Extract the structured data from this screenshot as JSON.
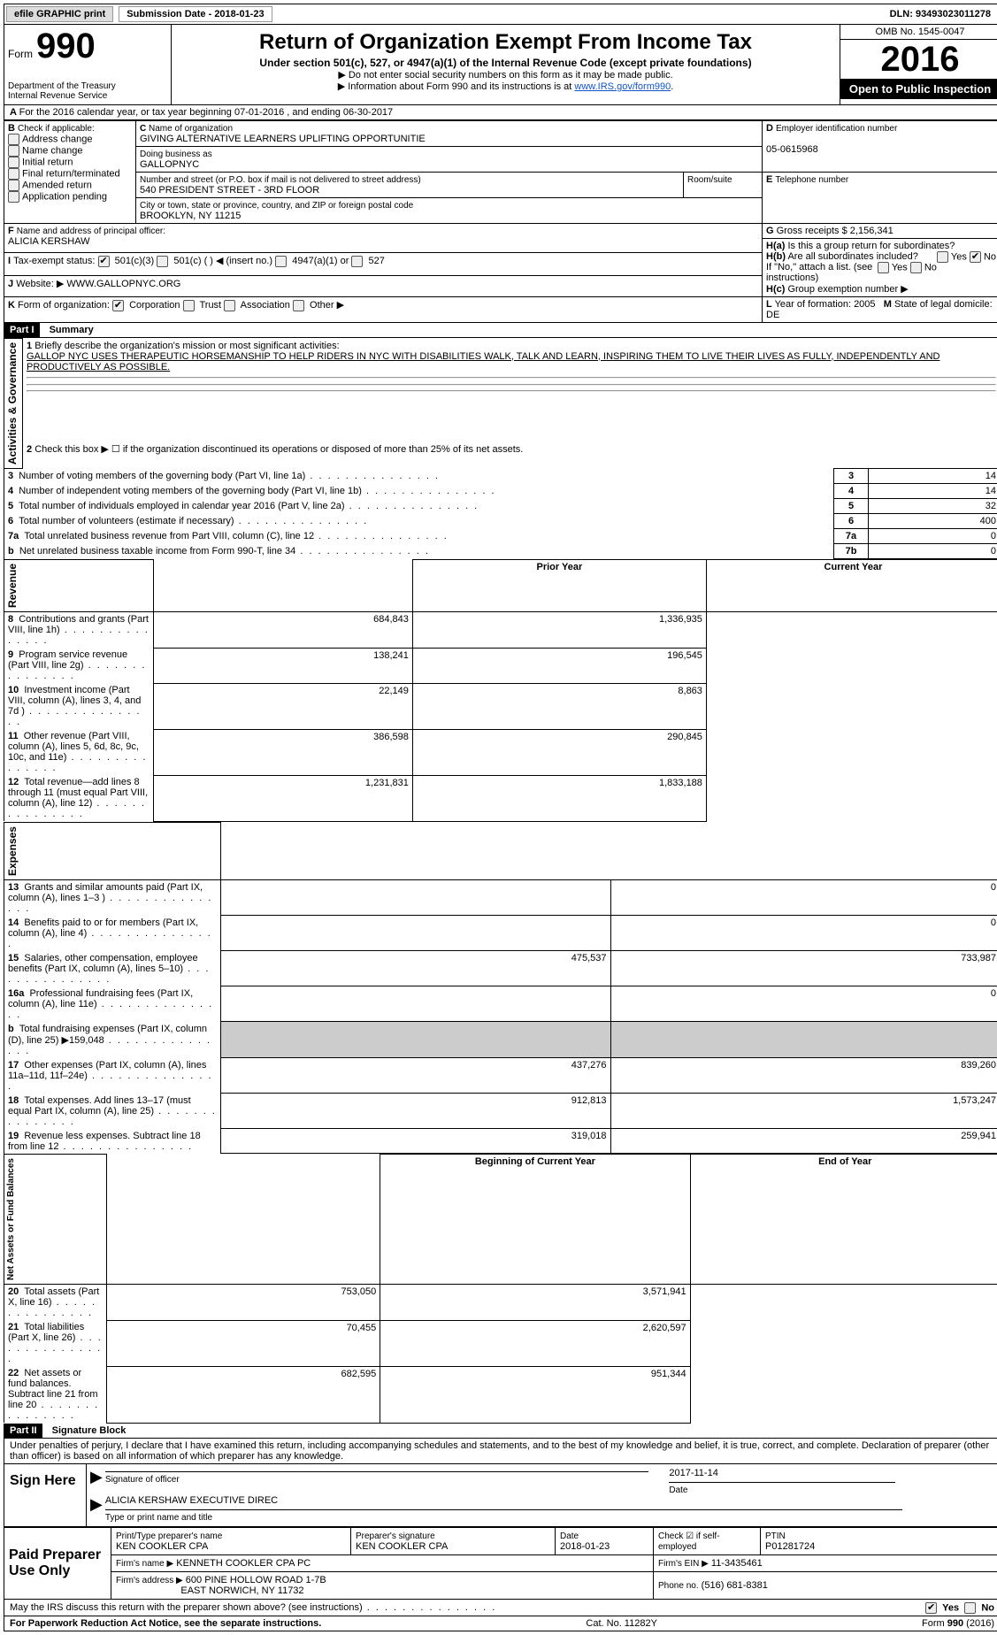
{
  "top": {
    "efile": "efile GRAPHIC print",
    "submission_label": "Submission Date - 2018-01-23",
    "dln": "DLN: 93493023011278"
  },
  "header": {
    "form_word": "Form",
    "form_number": "990",
    "dept": "Department of the Treasury",
    "irs": "Internal Revenue Service",
    "title": "Return of Organization Exempt From Income Tax",
    "subtitle": "Under section 501(c), 527, or 4947(a)(1) of the Internal Revenue Code (except private foundations)",
    "note1": "▶ Do not enter social security numbers on this form as it may be made public.",
    "note2_pre": "▶ Information about Form 990 and its instructions is at ",
    "note2_link": "www.IRS.gov/form990",
    "omb": "OMB No. 1545-0047",
    "year": "2016",
    "open": "Open to Public Inspection"
  },
  "A": {
    "line": "For the 2016 calendar year, or tax year beginning 07-01-2016   , and ending 06-30-2017"
  },
  "B": {
    "heading": "Check if applicable:",
    "items": [
      "Address change",
      "Name change",
      "Initial return",
      "Final return/terminated",
      "Amended return",
      "Application pending"
    ]
  },
  "C": {
    "label": "Name of organization",
    "org": "GIVING ALTERNATIVE LEARNERS UPLIFTING OPPORTUNITIE",
    "dba_label": "Doing business as",
    "dba": "GALLOPNYC",
    "street_label": "Number and street (or P.O. box if mail is not delivered to street address)",
    "room_label": "Room/suite",
    "street": "540 PRESIDENT STREET - 3RD FLOOR",
    "city_label": "City or town, state or province, country, and ZIP or foreign postal code",
    "city": "BROOKLYN, NY  11215"
  },
  "D": {
    "label": "Employer identification number",
    "val": "05-0615968"
  },
  "E": {
    "label": "Telephone number",
    "val": ""
  },
  "G": {
    "label": "Gross receipts $",
    "val": "2,156,341"
  },
  "F": {
    "label": "Name and address of principal officer:",
    "val": "ALICIA KERSHAW"
  },
  "H": {
    "a_q": "Is this a group return for subordinates?",
    "b_q": "Are all subordinates included?",
    "b_note": "If \"No,\" attach a list. (see instructions)",
    "c_q": "Group exemption number ▶",
    "yes": "Yes",
    "no": "No"
  },
  "I": {
    "label": "Tax-exempt status:",
    "opts": [
      "501(c)(3)",
      "501(c) (  ) ◀ (insert no.)",
      "4947(a)(1) or",
      "527"
    ]
  },
  "J": {
    "label": "Website: ▶",
    "val": "WWW.GALLOPNYC.ORG"
  },
  "K": {
    "label": "Form of organization:",
    "opts": [
      "Corporation",
      "Trust",
      "Association",
      "Other ▶"
    ]
  },
  "L": {
    "label": "Year of formation:",
    "val": "2005"
  },
  "M": {
    "label": "State of legal domicile:",
    "val": "DE"
  },
  "part1": {
    "title": "Part I",
    "name": "Summary",
    "q1_label": "Briefly describe the organization's mission or most significant activities:",
    "q1_text": "GALLOP NYC USES THERAPEUTIC HORSEMANSHIP TO HELP RIDERS IN NYC WITH DISABILITIES WALK, TALK AND LEARN, INSPIRING THEM TO LIVE THEIR LIVES AS FULLY, INDEPENDENTLY AND PRODUCTIVELY AS POSSIBLE.",
    "q2": "Check this box ▶ ☐ if the organization discontinued its operations or disposed of more than 25% of its net assets.",
    "governance_label": "Activities & Governance",
    "revenue_label": "Revenue",
    "expenses_label": "Expenses",
    "netassets_label": "Net Assets or Fund Balances",
    "hdr_prior": "Prior Year",
    "hdr_current": "Current Year",
    "hdr_boy": "Beginning of Current Year",
    "hdr_eoy": "End of Year",
    "gov_lines": [
      {
        "n": "3",
        "t": "Number of voting members of the governing body (Part VI, line 1a)",
        "box": "3",
        "v": "14"
      },
      {
        "n": "4",
        "t": "Number of independent voting members of the governing body (Part VI, line 1b)",
        "box": "4",
        "v": "14"
      },
      {
        "n": "5",
        "t": "Total number of individuals employed in calendar year 2016 (Part V, line 2a)",
        "box": "5",
        "v": "32"
      },
      {
        "n": "6",
        "t": "Total number of volunteers (estimate if necessary)",
        "box": "6",
        "v": "400"
      },
      {
        "n": "7a",
        "t": "Total unrelated business revenue from Part VIII, column (C), line 12",
        "box": "7a",
        "v": "0"
      },
      {
        "n": "b",
        "t": "Net unrelated business taxable income from Form 990-T, line 34",
        "box": "7b",
        "v": "0"
      }
    ],
    "rev_lines": [
      {
        "n": "8",
        "t": "Contributions and grants (Part VIII, line 1h)",
        "p": "684,843",
        "c": "1,336,935"
      },
      {
        "n": "9",
        "t": "Program service revenue (Part VIII, line 2g)",
        "p": "138,241",
        "c": "196,545"
      },
      {
        "n": "10",
        "t": "Investment income (Part VIII, column (A), lines 3, 4, and 7d )",
        "p": "22,149",
        "c": "8,863"
      },
      {
        "n": "11",
        "t": "Other revenue (Part VIII, column (A), lines 5, 6d, 8c, 9c, 10c, and 11e)",
        "p": "386,598",
        "c": "290,845"
      },
      {
        "n": "12",
        "t": "Total revenue—add lines 8 through 11 (must equal Part VIII, column (A), line 12)",
        "p": "1,231,831",
        "c": "1,833,188"
      }
    ],
    "exp_lines": [
      {
        "n": "13",
        "t": "Grants and similar amounts paid (Part IX, column (A), lines 1–3 )",
        "p": "",
        "c": "0"
      },
      {
        "n": "14",
        "t": "Benefits paid to or for members (Part IX, column (A), line 4)",
        "p": "",
        "c": "0"
      },
      {
        "n": "15",
        "t": "Salaries, other compensation, employee benefits (Part IX, column (A), lines 5–10)",
        "p": "475,537",
        "c": "733,987"
      },
      {
        "n": "16a",
        "t": "Professional fundraising fees (Part IX, column (A), line 11e)",
        "p": "",
        "c": "0"
      },
      {
        "n": "b",
        "t": "Total fundraising expenses (Part IX, column (D), line 25) ▶159,048",
        "p": "SHADE",
        "c": "SHADE"
      },
      {
        "n": "17",
        "t": "Other expenses (Part IX, column (A), lines 11a–11d, 11f–24e)",
        "p": "437,276",
        "c": "839,260"
      },
      {
        "n": "18",
        "t": "Total expenses. Add lines 13–17 (must equal Part IX, column (A), line 25)",
        "p": "912,813",
        "c": "1,573,247"
      },
      {
        "n": "19",
        "t": "Revenue less expenses. Subtract line 18 from line 12",
        "p": "319,018",
        "c": "259,941"
      }
    ],
    "net_lines": [
      {
        "n": "20",
        "t": "Total assets (Part X, line 16)",
        "p": "753,050",
        "c": "3,571,941"
      },
      {
        "n": "21",
        "t": "Total liabilities (Part X, line 26)",
        "p": "70,455",
        "c": "2,620,597"
      },
      {
        "n": "22",
        "t": "Net assets or fund balances. Subtract line 21 from line 20",
        "p": "682,595",
        "c": "951,344"
      }
    ]
  },
  "part2": {
    "title": "Part II",
    "name": "Signature Block",
    "decl": "Under penalties of perjury, I declare that I have examined this return, including accompanying schedules and statements, and to the best of my knowledge and belief, it is true, correct, and complete. Declaration of preparer (other than officer) is based on all information of which preparer has any knowledge.",
    "sign_here": "Sign Here",
    "sig_officer": "Signature of officer",
    "date_label": "Date",
    "sig_date": "2017-11-14",
    "officer_name": "ALICIA KERSHAW EXECUTIVE DIREC",
    "type_name": "Type or print name and title",
    "paid_prep": "Paid Preparer Use Only",
    "prep_name_lbl": "Print/Type preparer's name",
    "prep_name": "KEN COOKLER CPA",
    "prep_sig_lbl": "Preparer's signature",
    "prep_sig": "KEN COOKLER CPA",
    "prep_date_lbl": "Date",
    "prep_date": "2018-01-23",
    "check_self": "Check ☑ if self-employed",
    "ptin_lbl": "PTIN",
    "ptin": "P01281724",
    "firm_name_lbl": "Firm's name      ▶",
    "firm_name": "KENNETH COOKLER CPA PC",
    "firm_ein_lbl": "Firm's EIN ▶",
    "firm_ein": "11-3435461",
    "firm_addr_lbl": "Firm's address ▶",
    "firm_addr": "600 PINE HOLLOW ROAD 1-7B",
    "firm_city": "EAST NORWICH, NY  11732",
    "phone_lbl": "Phone no.",
    "phone": "(516) 681-8381",
    "discuss": "May the IRS discuss this return with the preparer shown above? (see instructions)",
    "yes": "Yes",
    "no": "No"
  },
  "footer": {
    "pra": "For Paperwork Reduction Act Notice, see the separate instructions.",
    "cat": "Cat. No. 11282Y",
    "form": "Form 990 (2016)"
  }
}
